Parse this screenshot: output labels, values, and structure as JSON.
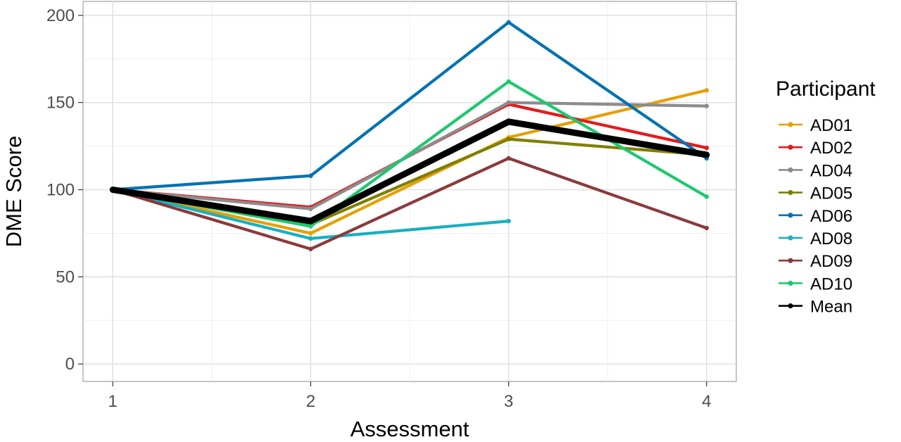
{
  "chart_data": {
    "type": "line",
    "xlabel": "Assessment",
    "ylabel": "DME Score",
    "x_ticks": [
      "1",
      "2",
      "3",
      "4"
    ],
    "y_ticks": [
      "0",
      "50",
      "100",
      "150",
      "200"
    ],
    "xlim": [
      0.85,
      4.15
    ],
    "ylim": [
      -10,
      208
    ],
    "grid": true,
    "legend_title": "Participant",
    "legend_position": "right",
    "x": [
      1,
      2,
      3,
      4
    ],
    "series": [
      {
        "name": "AD01",
        "color": "#E69F00",
        "values": [
          100,
          75,
          130,
          157
        ]
      },
      {
        "name": "AD02",
        "color": "#E41A1C",
        "values": [
          100,
          90,
          149,
          124
        ]
      },
      {
        "name": "AD04",
        "color": "#8C8C8C",
        "values": [
          100,
          89,
          150,
          148
        ]
      },
      {
        "name": "AD05",
        "color": "#7F7F00",
        "values": [
          100,
          80,
          129,
          120
        ]
      },
      {
        "name": "AD06",
        "color": "#0072B2",
        "values": [
          100,
          108,
          196,
          118
        ]
      },
      {
        "name": "AD08",
        "color": "#17B0C0",
        "values": [
          100,
          72,
          82,
          null
        ]
      },
      {
        "name": "AD09",
        "color": "#8B3A3A",
        "values": [
          100,
          66,
          118,
          78
        ]
      },
      {
        "name": "AD10",
        "color": "#1DC96E",
        "values": [
          100,
          79,
          162,
          96
        ]
      },
      {
        "name": "Mean",
        "color": "#000000",
        "values": [
          100,
          82,
          139,
          120
        ],
        "bold": true
      }
    ]
  }
}
